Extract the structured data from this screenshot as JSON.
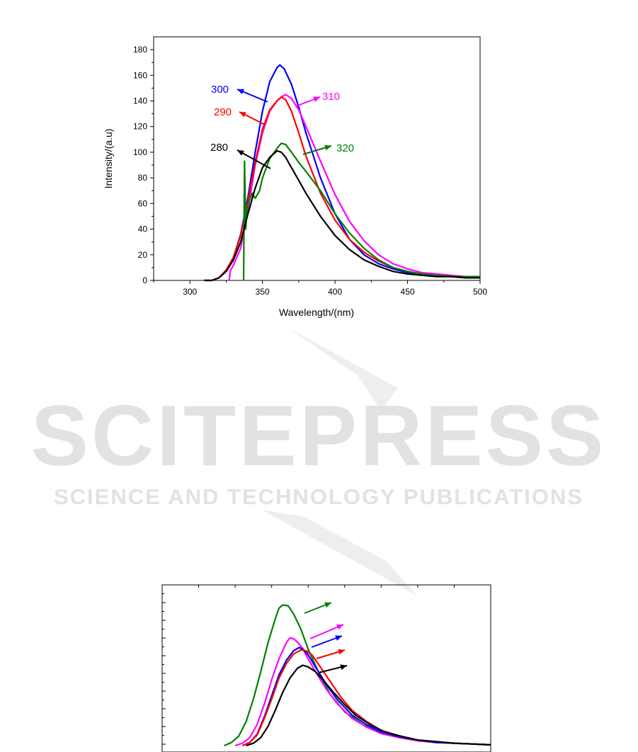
{
  "watermark": {
    "title": "SCITEPRESS",
    "subtitle": "SCIENCE AND TECHNOLOGY PUBLICATIONS"
  },
  "colors": {
    "280": "#000000",
    "290": "#ff0000",
    "300": "#0000ff",
    "310": "#ff00ff",
    "320": "#008000"
  },
  "chart_data": [
    {
      "type": "line",
      "xlabel": "Wavelength/(nm)",
      "ylabel": "Intensity/(a.u)",
      "xlim": [
        275,
        500
      ],
      "ylim": [
        0,
        190
      ],
      "xticks": [
        300,
        350,
        400,
        450,
        500
      ],
      "yticks": [
        0,
        20,
        40,
        60,
        80,
        100,
        120,
        140,
        160,
        180
      ],
      "grid": false,
      "series": [
        {
          "name": "300",
          "color": "#0000ff",
          "x": [
            310,
            315,
            320,
            325,
            330,
            335,
            340,
            345,
            350,
            355,
            360,
            362,
            365,
            370,
            375,
            380,
            390,
            400,
            410,
            420,
            430,
            440,
            450,
            460,
            470,
            480,
            490,
            500
          ],
          "y": [
            0,
            0,
            2,
            8,
            18,
            36,
            65,
            100,
            132,
            155,
            166,
            168,
            165,
            153,
            135,
            115,
            80,
            52,
            32,
            20,
            13,
            9,
            6,
            5,
            4,
            3,
            3,
            3
          ]
        },
        {
          "name": "310",
          "color": "#ff00ff",
          "x": [
            327,
            328,
            330,
            335,
            340,
            345,
            350,
            355,
            360,
            363,
            366,
            370,
            375,
            380,
            390,
            400,
            410,
            420,
            430,
            440,
            450,
            460,
            470,
            480,
            490,
            500
          ],
          "y": [
            0,
            8,
            12,
            25,
            55,
            90,
            115,
            132,
            140,
            143,
            145,
            142,
            133,
            120,
            93,
            67,
            46,
            31,
            20,
            13,
            9,
            6,
            5,
            4,
            3,
            3
          ]
        },
        {
          "name": "290",
          "color": "#ff0000",
          "x": [
            310,
            315,
            320,
            325,
            330,
            335,
            340,
            345,
            350,
            355,
            360,
            363,
            366,
            370,
            375,
            380,
            390,
            400,
            410,
            420,
            430,
            440,
            450,
            460,
            470,
            480,
            490,
            500
          ],
          "y": [
            0,
            0,
            2,
            8,
            18,
            35,
            62,
            92,
            118,
            133,
            140,
            143,
            141,
            132,
            115,
            97,
            68,
            47,
            32,
            22,
            15,
            10,
            7,
            5,
            4,
            3,
            3,
            3
          ]
        },
        {
          "name": "320",
          "color": "#008000",
          "x": [
            337,
            337.6,
            338,
            338.5,
            339,
            340,
            343,
            345,
            348,
            350,
            355,
            360,
            363,
            366,
            370,
            375,
            380,
            390,
            400,
            410,
            420,
            430,
            440,
            450,
            460,
            470,
            480,
            490,
            500
          ],
          "y": [
            0,
            93,
            70,
            40,
            50,
            60,
            68,
            64,
            70,
            80,
            95,
            103,
            107,
            106,
            100,
            92,
            85,
            70,
            52,
            37,
            25,
            16,
            10,
            7,
            5,
            4,
            3,
            3,
            3
          ]
        },
        {
          "name": "280",
          "color": "#000000",
          "x": [
            310,
            315,
            320,
            325,
            330,
            335,
            340,
            345,
            350,
            355,
            360,
            363,
            366,
            370,
            375,
            380,
            390,
            400,
            410,
            420,
            430,
            440,
            450,
            460,
            470,
            480,
            490,
            500
          ],
          "y": [
            0,
            0,
            2,
            7,
            16,
            30,
            52,
            72,
            88,
            96,
            101,
            100,
            96,
            88,
            78,
            68,
            50,
            35,
            24,
            16,
            11,
            7,
            5,
            4,
            3,
            3,
            2,
            2
          ]
        }
      ],
      "annotations": [
        {
          "text": "300",
          "color": "#0000ff"
        },
        {
          "text": "310",
          "color": "#ff00ff"
        },
        {
          "text": "290",
          "color": "#ff0000"
        },
        {
          "text": "320",
          "color": "#008000"
        },
        {
          "text": "280",
          "color": "#000000"
        }
      ]
    },
    {
      "type": "line",
      "xlim": [
        0,
        9
      ],
      "ylim": [
        0,
        200
      ],
      "grid": false,
      "series": [
        {
          "color": "#008000",
          "x": [
            1.7,
            1.9,
            2.1,
            2.3,
            2.5,
            2.7,
            2.9,
            3.1,
            3.2,
            3.3,
            3.45,
            3.6,
            3.8,
            4.0,
            4.3,
            4.6,
            5.0,
            5.5,
            6.0,
            6.5,
            7.0,
            7.5,
            8.0,
            8.5,
            9.0
          ],
          "y": [
            0,
            4,
            12,
            30,
            58,
            92,
            128,
            158,
            171,
            175,
            174,
            164,
            145,
            120,
            90,
            64,
            42,
            26,
            16,
            10,
            6,
            4,
            3,
            2,
            1
          ]
        },
        {
          "color": "#ff00ff",
          "x": [
            2.0,
            2.2,
            2.4,
            2.6,
            2.8,
            3.0,
            3.2,
            3.4,
            3.5,
            3.6,
            3.7,
            3.85,
            4.0,
            4.2,
            4.5,
            4.8,
            5.2,
            5.6,
            6.0,
            6.5,
            7.0,
            7.5,
            8.0,
            8.5,
            9.0
          ],
          "y": [
            0,
            3,
            10,
            26,
            52,
            82,
            108,
            128,
            134,
            133,
            129,
            121,
            108,
            92,
            70,
            52,
            34,
            23,
            15,
            10,
            6,
            4,
            3,
            2,
            1
          ]
        },
        {
          "color": "#0000ff",
          "x": [
            2.2,
            2.4,
            2.6,
            2.8,
            3.0,
            3.2,
            3.4,
            3.6,
            3.75,
            3.85,
            4.0,
            4.2,
            4.5,
            4.8,
            5.2,
            5.6,
            6.0,
            6.5,
            7.0,
            7.5,
            8.0,
            8.5,
            9.0
          ],
          "y": [
            0,
            4,
            14,
            36,
            62,
            88,
            106,
            118,
            122,
            120,
            113,
            98,
            76,
            57,
            38,
            26,
            17,
            11,
            7,
            4,
            3,
            2,
            1
          ]
        },
        {
          "color": "#ff0000",
          "x": [
            2.2,
            2.4,
            2.6,
            2.8,
            3.0,
            3.2,
            3.4,
            3.6,
            3.8,
            3.95,
            4.1,
            4.3,
            4.6,
            4.9,
            5.2,
            5.6,
            6.0,
            6.5,
            7.0,
            7.5,
            8.0,
            8.5,
            9.0
          ],
          "y": [
            0,
            4,
            13,
            34,
            58,
            84,
            102,
            114,
            119,
            118,
            113,
            100,
            80,
            60,
            44,
            30,
            19,
            12,
            7,
            5,
            3,
            2,
            1
          ]
        },
        {
          "color": "#000000",
          "x": [
            2.3,
            2.5,
            2.7,
            2.9,
            3.1,
            3.3,
            3.5,
            3.7,
            3.85,
            4.0,
            4.2,
            4.4,
            4.7,
            5.0,
            5.3,
            5.7,
            6.1,
            6.6,
            7.0,
            7.5,
            8.0,
            8.5,
            9.0
          ],
          "y": [
            0,
            3,
            10,
            24,
            44,
            66,
            84,
            96,
            100,
            98,
            92,
            82,
            66,
            51,
            38,
            26,
            17,
            11,
            7,
            5,
            3,
            2,
            1
          ]
        }
      ]
    }
  ]
}
